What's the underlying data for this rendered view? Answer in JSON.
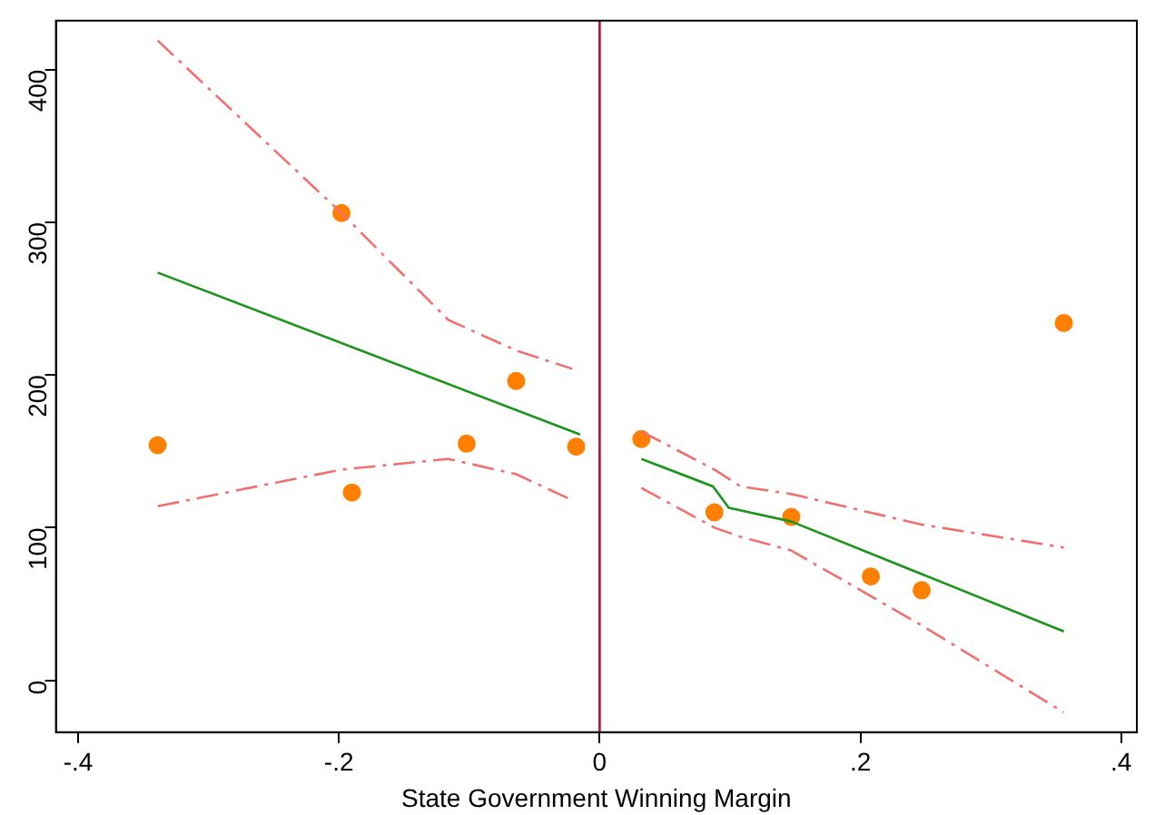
{
  "chart_data": {
    "type": "scatter",
    "xlabel": "State Government Winning Margin",
    "xlim": [
      -0.417,
      0.412
    ],
    "ylim": [
      -34,
      432
    ],
    "xticks": [
      {
        "value": -0.4,
        "label": "-.4"
      },
      {
        "value": -0.2,
        "label": "-.2"
      },
      0,
      {
        "value": 0.2,
        "label": ".2"
      },
      {
        "value": 0.4,
        "label": ".4"
      }
    ],
    "yticks": [
      0,
      100,
      200,
      300,
      400
    ],
    "grid": false,
    "legend": false,
    "marker": "circle",
    "ref_lines": [
      {
        "axis": "x",
        "value": 0,
        "color": "#b0103a"
      }
    ],
    "series": [
      {
        "type": "line",
        "color": "#f07070",
        "line_style": "dashed",
        "marker": "none",
        "x": [
          -0.339,
          -0.198,
          -0.116,
          -0.064,
          -0.021
        ],
        "values": [
          419,
          306,
          236,
          216,
          204
        ]
      },
      {
        "type": "line",
        "color": "#f07070",
        "line_style": "dashed",
        "marker": "none",
        "x": [
          -0.339,
          -0.198,
          -0.116,
          -0.064,
          -0.021
        ],
        "values": [
          114,
          138,
          145,
          135,
          118
        ]
      },
      {
        "type": "line",
        "color": "#f07070",
        "line_style": "dashed",
        "marker": "none",
        "x": [
          0.032,
          0.088,
          0.108,
          0.147,
          0.247,
          0.356
        ],
        "values": [
          163,
          138,
          127,
          122,
          102,
          87
        ]
      },
      {
        "type": "line",
        "color": "#f07070",
        "line_style": "dashed",
        "marker": "none",
        "x": [
          0.032,
          0.088,
          0.108,
          0.147,
          0.247,
          0.356
        ],
        "values": [
          126,
          100,
          94,
          85,
          36,
          -21
        ]
      },
      {
        "type": "line",
        "color": "#1a941a",
        "line_style": "solid",
        "marker": "none",
        "x": [
          -0.339,
          -0.015
        ],
        "values": [
          267,
          161
        ]
      },
      {
        "type": "line",
        "color": "#1a941a",
        "line_style": "solid",
        "marker": "none",
        "x": [
          0.032,
          0.087,
          0.099,
          0.147,
          0.356
        ],
        "values": [
          145,
          127,
          113,
          104,
          32
        ]
      },
      {
        "color": "#ff8000",
        "x": [
          -0.339,
          -0.198,
          -0.19,
          -0.102,
          -0.064,
          -0.018,
          0.032,
          0.088,
          0.147,
          0.208,
          0.247,
          0.356
        ],
        "values": [
          154,
          306,
          123,
          155,
          196,
          153,
          158,
          110,
          107,
          68,
          59,
          234
        ]
      }
    ]
  }
}
